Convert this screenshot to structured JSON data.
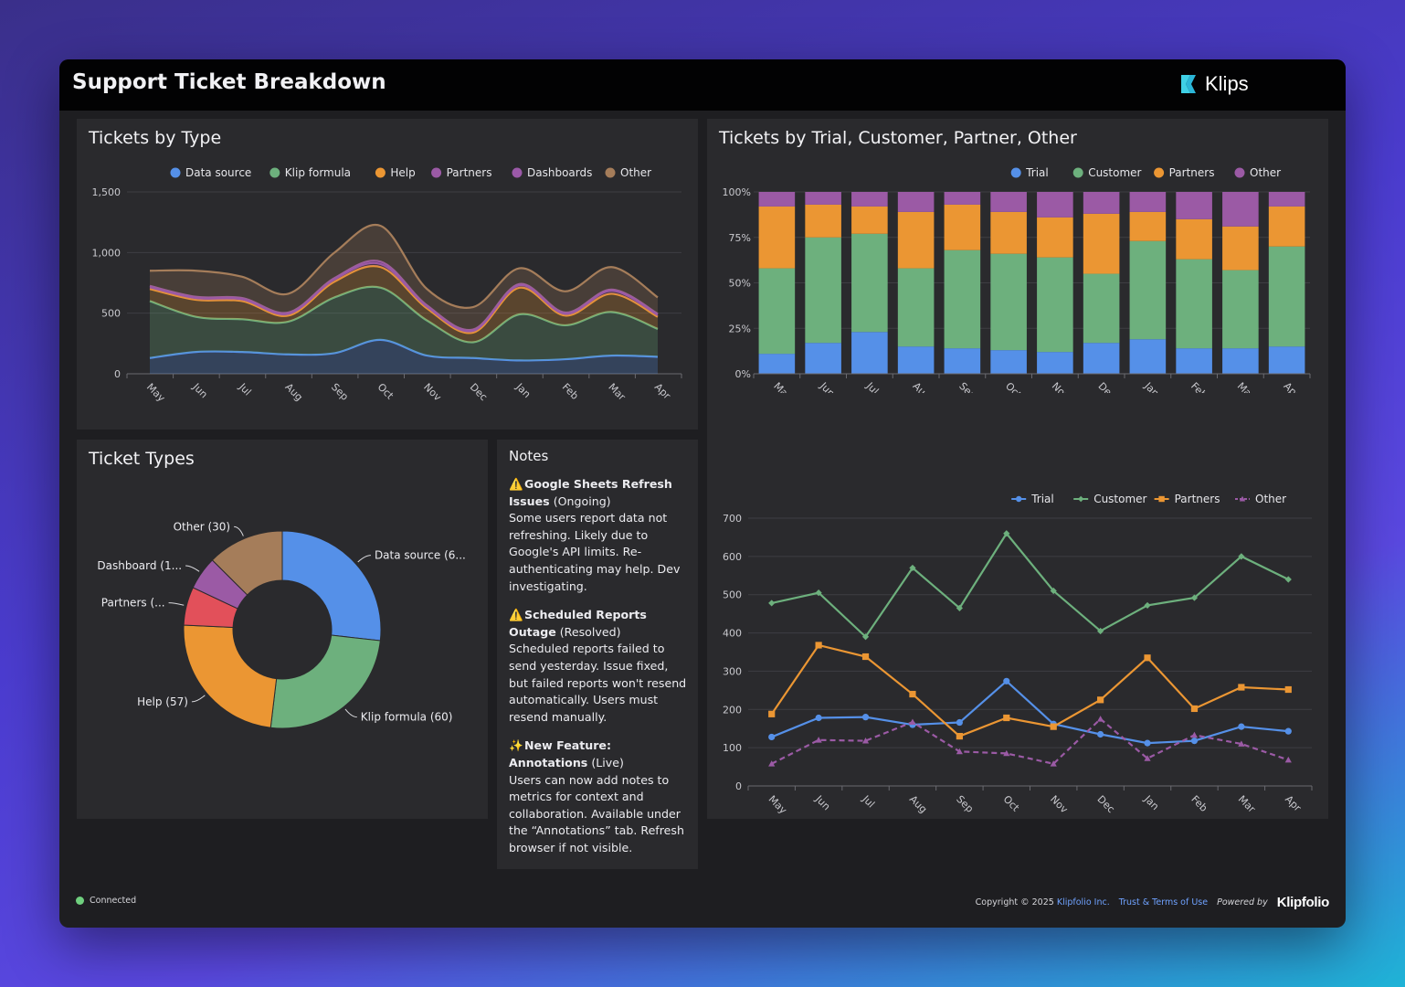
{
  "header": {
    "title": "Support Ticket Breakdown",
    "brand": "Klips",
    "brand_icon": "klips-logo-icon"
  },
  "colors": {
    "blue": "#5590e8",
    "green": "#6db07d",
    "orange": "#eb9633",
    "purple": "#9b5aa5",
    "violet": "#9b59a8",
    "brown": "#a57d5a",
    "red": "#e2505a",
    "panel": "#2a2a2d",
    "accent_link": "#6fa2ff"
  },
  "months": [
    "May",
    "Jun",
    "Jul",
    "Aug",
    "Sep",
    "Oct",
    "Nov",
    "Dec",
    "Jan",
    "Feb",
    "Mar",
    "Apr"
  ],
  "chart_data": [
    {
      "id": "tickets-by-type",
      "type": "area",
      "title": "Tickets by Type",
      "stacked": true,
      "smooth": true,
      "ylim": [
        0,
        1500
      ],
      "yticks": [
        "0",
        "500",
        "1,000",
        "1,500"
      ],
      "ytick_values": [
        0,
        500,
        1000,
        1500
      ],
      "legend_position": "top",
      "series": [
        {
          "name": "Data source",
          "color": "#5590e8",
          "values": [
            130,
            180,
            180,
            160,
            170,
            280,
            150,
            130,
            110,
            120,
            150,
            140
          ]
        },
        {
          "name": "Klip formula",
          "color": "#6db07d",
          "values": [
            470,
            290,
            270,
            270,
            460,
            430,
            290,
            130,
            380,
            280,
            360,
            230
          ]
        },
        {
          "name": "Help",
          "color": "#eb9633",
          "values": [
            100,
            140,
            150,
            50,
            130,
            170,
            100,
            80,
            220,
            80,
            150,
            100
          ]
        },
        {
          "name": "Partners",
          "color": "#9b5aa5",
          "values": [
            15,
            15,
            15,
            15,
            20,
            25,
            15,
            15,
            20,
            15,
            25,
            15
          ]
        },
        {
          "name": "Dashboards",
          "color": "#9b59a8",
          "values": [
            10,
            10,
            10,
            10,
            10,
            20,
            10,
            10,
            10,
            10,
            10,
            10
          ]
        },
        {
          "name": "Other",
          "color": "#a57d5a",
          "values": [
            125,
            215,
            175,
            155,
            210,
            295,
            135,
            185,
            130,
            175,
            185,
            135
          ]
        }
      ]
    },
    {
      "id": "tickets-by-segment-pct",
      "type": "bar",
      "title": "Tickets by Trial, Customer, Partner, Other",
      "stacked": true,
      "percent": true,
      "ylim": [
        0,
        100
      ],
      "yticks": [
        "0%",
        "25%",
        "50%",
        "75%",
        "100%"
      ],
      "ytick_values": [
        0,
        25,
        50,
        75,
        100
      ],
      "legend_position": "top",
      "series": [
        {
          "name": "Trial",
          "color": "#5590e8",
          "values": [
            11,
            17,
            23,
            15,
            14,
            13,
            12,
            17,
            19,
            14,
            14,
            15
          ]
        },
        {
          "name": "Customer",
          "color": "#6db07d",
          "values": [
            47,
            58,
            54,
            43,
            54,
            53,
            52,
            38,
            54,
            49,
            43,
            55
          ]
        },
        {
          "name": "Partners",
          "color": "#eb9633",
          "values": [
            34,
            18,
            15,
            31,
            25,
            23,
            22,
            33,
            16,
            22,
            24,
            22
          ]
        },
        {
          "name": "Other",
          "color": "#9b5aa5",
          "values": [
            8,
            7,
            8,
            11,
            7,
            11,
            14,
            12,
            11,
            15,
            19,
            8
          ]
        }
      ]
    },
    {
      "id": "tickets-by-segment-line",
      "type": "line",
      "ylim": [
        0,
        700
      ],
      "yticks": [
        "0",
        "100",
        "200",
        "300",
        "400",
        "500",
        "600",
        "700"
      ],
      "ytick_values": [
        0,
        100,
        200,
        300,
        400,
        500,
        600,
        700
      ],
      "legend_position": "top",
      "series": [
        {
          "name": "Trial",
          "color": "#5590e8",
          "marker": "circle",
          "dashed": false,
          "values": [
            128,
            178,
            180,
            160,
            166,
            274,
            162,
            135,
            112,
            118,
            155,
            143
          ]
        },
        {
          "name": "Customer",
          "color": "#6db07d",
          "marker": "diamond",
          "dashed": false,
          "values": [
            478,
            505,
            390,
            570,
            465,
            660,
            510,
            405,
            472,
            492,
            600,
            540
          ]
        },
        {
          "name": "Partners",
          "color": "#eb9633",
          "marker": "square",
          "dashed": false,
          "values": [
            188,
            368,
            338,
            240,
            130,
            178,
            155,
            225,
            335,
            202,
            258,
            252
          ]
        },
        {
          "name": "Other",
          "color": "#9b5aa5",
          "marker": "triangle",
          "dashed": true,
          "values": [
            58,
            120,
            118,
            167,
            90,
            85,
            58,
            175,
            72,
            133,
            110,
            68
          ]
        }
      ]
    },
    {
      "id": "ticket-types-donut",
      "type": "pie",
      "donut": true,
      "title": "Ticket Types",
      "slices": [
        {
          "name": "Data source",
          "label": "Data source (6...",
          "value": 64,
          "color": "#5590e8"
        },
        {
          "name": "Klip formula",
          "label": "Klip formula (60)",
          "value": 60,
          "color": "#6db07d"
        },
        {
          "name": "Help",
          "label": "Help (57)",
          "value": 57,
          "color": "#eb9633"
        },
        {
          "name": "Partners",
          "label": "Partners (...",
          "value": 15,
          "color": "#e2505a"
        },
        {
          "name": "Dashboard",
          "label": "Dashboard (1...",
          "value": 13,
          "color": "#9b5aa5"
        },
        {
          "name": "Other",
          "label": "Other (30)",
          "value": 30,
          "color": "#a57d5a"
        }
      ]
    }
  ],
  "notes": {
    "title": "Notes",
    "items": [
      {
        "icon": "warning-icon",
        "emoji": "⚠️",
        "heading": "Google Sheets Refresh Issues",
        "status": "(Ongoing)",
        "text": "Some users report data not refreshing. Likely due to Google's API limits. Re-authenticating may help. Dev investigating."
      },
      {
        "icon": "warning-icon",
        "emoji": "⚠️",
        "heading": "Scheduled Reports Outage",
        "status": "(Resolved)",
        "text": "Scheduled reports failed to send yesterday. Issue fixed, but failed reports won't resend automatically. Users must resend manually."
      },
      {
        "icon": "sparkles-icon",
        "emoji": "✨",
        "heading": "New Feature: Annotations",
        "status": "(Live)",
        "text": "Users can now add notes to metrics for context and collaboration. Available under the “Annotations” tab. Refresh browser if not visible."
      }
    ]
  },
  "footer": {
    "status": "Connected",
    "copyright": "Copyright © 2025",
    "company": "Klipfolio Inc.",
    "terms": "Trust & Terms of Use",
    "powered_by": "Powered by",
    "brand": "Klipfolio"
  }
}
